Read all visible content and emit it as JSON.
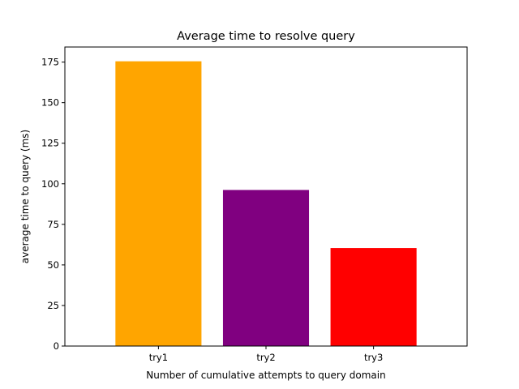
{
  "chart_data": {
    "type": "bar",
    "title": "Average time to resolve query",
    "xlabel": "Number of cumulative attempts to query domain",
    "ylabel": "average time to query (ms)",
    "categories": [
      "try1",
      "try2",
      "try3"
    ],
    "values": [
      175.5,
      96.2,
      60.4
    ],
    "colors": [
      "#ffa500",
      "#800080",
      "#ff0000"
    ],
    "ylim": [
      0,
      184.3
    ],
    "yticks": [
      0,
      25,
      50,
      75,
      100,
      125,
      150,
      175
    ],
    "grid": false,
    "legend": "none"
  }
}
